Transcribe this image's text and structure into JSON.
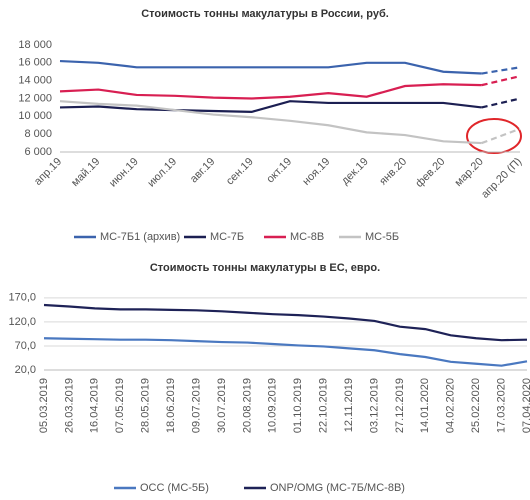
{
  "chart_data": [
    {
      "type": "line",
      "title": "Стоимость тонны макулатуры в России, руб.",
      "categories": [
        "апр.19",
        "май.19",
        "июн.19",
        "июл.19",
        "авг.19",
        "сен.19",
        "окт.19",
        "ноя.19",
        "дек.19",
        "янв.20",
        "фев.20",
        "мар.20",
        "апр.20 (П)"
      ],
      "series": [
        {
          "name": "МС-7Б1 (архив)",
          "color": "#3b63ad",
          "values": [
            16200,
            16000,
            15500,
            15500,
            15500,
            15500,
            15500,
            15500,
            16000,
            16000,
            15000,
            14800,
            15500
          ]
        },
        {
          "name": "МС-7Б",
          "color": "#1c1f52",
          "values": [
            11000,
            11100,
            10800,
            10700,
            10600,
            10500,
            11700,
            11500,
            11500,
            11500,
            11500,
            11000,
            12000
          ]
        },
        {
          "name": "МС-8В",
          "color": "#d81f52",
          "values": [
            12800,
            13000,
            12400,
            12300,
            12100,
            12000,
            12200,
            12600,
            12200,
            13400,
            13600,
            13500,
            14500
          ]
        },
        {
          "name": "МС-5Б",
          "color": "#c3c3c3",
          "values": [
            11700,
            11400,
            11200,
            10700,
            10200,
            9900,
            9500,
            9000,
            8200,
            7900,
            7200,
            7000,
            8600
          ]
        }
      ],
      "ylim": [
        6000,
        18000
      ],
      "yticks": [
        {
          "value": 6000,
          "label": "6 000"
        },
        {
          "value": 8000,
          "label": "8 000"
        },
        {
          "value": 10000,
          "label": "10 000"
        },
        {
          "value": 12000,
          "label": "12 000"
        },
        {
          "value": 14000,
          "label": "14 000"
        },
        {
          "value": 16000,
          "label": "16 000"
        },
        {
          "value": 18000,
          "label": "18 000"
        }
      ],
      "grid": false,
      "dashed_last_segment": true,
      "legend": "bottom"
    },
    {
      "type": "line",
      "title": "Стоимость тонны макулатуры в ЕС, евро.",
      "categories": [
        "05.03.2019",
        "26.03.2019",
        "16.04.2019",
        "07.05.2019",
        "28.05.2019",
        "18.06.2019",
        "09.07.2019",
        "30.07.2019",
        "20.08.2019",
        "10.09.2019",
        "01.10.2019",
        "22.10.2019",
        "12.11.2019",
        "03.12.2019",
        "27.12.2019",
        "14.01.2020",
        "04.02.2020",
        "25.02.2020",
        "17.03.2020",
        "07.04.2020"
      ],
      "series": [
        {
          "name": "OCC (МС-5Б)",
          "color": "#4a78c0",
          "values": [
            86,
            85,
            84,
            83,
            83,
            82,
            80,
            78,
            77,
            74,
            71,
            69,
            65,
            61,
            53,
            47,
            37,
            33,
            29,
            38
          ]
        },
        {
          "name": "ONP/OMG (МС-7Б/МС-8В)",
          "color": "#1e2257",
          "values": [
            155,
            152,
            148,
            146,
            146,
            145,
            144,
            142,
            139,
            136,
            134,
            131,
            127,
            122,
            110,
            105,
            92,
            86,
            82,
            83
          ]
        }
      ],
      "ylim": [
        20,
        180
      ],
      "yticks": [
        {
          "value": 20,
          "label": "20,0"
        },
        {
          "value": 70,
          "label": "70,0"
        },
        {
          "value": 120,
          "label": "120,0"
        },
        {
          "value": 170,
          "label": "170,0"
        }
      ],
      "grid": true,
      "dashed_last_segment": false,
      "legend": "bottom"
    }
  ]
}
